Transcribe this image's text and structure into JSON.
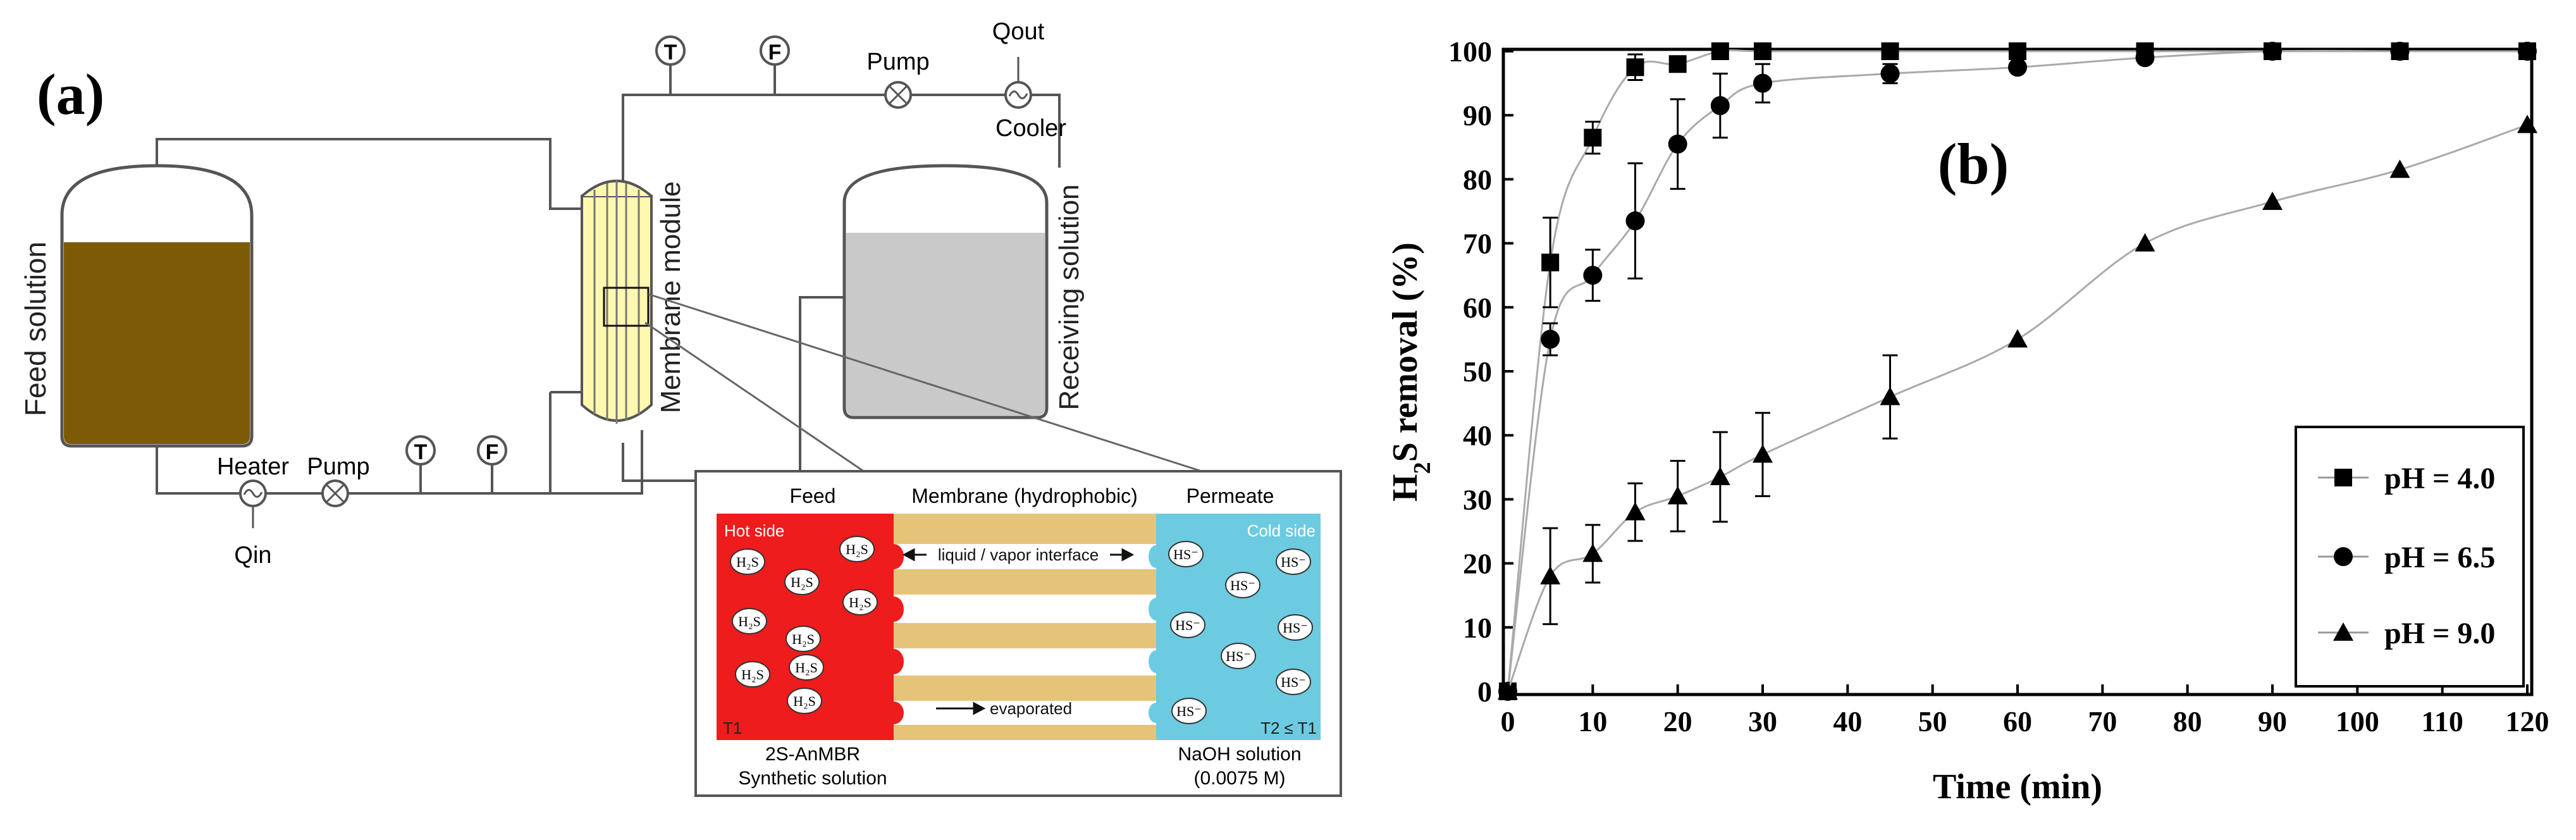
{
  "panel_a": {
    "label": "(a)",
    "feed_solution": "Feed solution",
    "membrane_module": "Membrane module",
    "receiving_solution": "Receiving solution",
    "pump_top": "Pump",
    "qout": "Qout",
    "cooler": "Cooler",
    "heater": "Heater",
    "pump_bottom": "Pump",
    "qin": "Qin",
    "t": "T",
    "f": "F",
    "inset": {
      "feed_header": "Feed",
      "membrane_header": "Membrane (hydrophobic)",
      "permeate_header": "Permeate",
      "hot_side": "Hot side",
      "cold_side": "Cold side",
      "interface": "liquid / vapor interface",
      "evaporated": "evaporated",
      "t1": "T1",
      "t2": "T2 ≤ T1",
      "feed_caption_1": "2S-AnMBR",
      "feed_caption_2": "Synthetic solution",
      "permeate_caption_1": "NaOH solution",
      "permeate_caption_2": "(0.0075 M)",
      "h2s": "H₂S",
      "hs": "HS⁻"
    }
  },
  "chart_data": {
    "type": "scatter",
    "panel_label": "(b)",
    "title": "",
    "xlabel": "Time (min)",
    "ylabel_main": "H",
    "ylabel_sub": "2",
    "ylabel_rest": "S removal (%)",
    "xlim": [
      0,
      120
    ],
    "ylim": [
      0,
      100
    ],
    "xticks": [
      0,
      10,
      20,
      30,
      40,
      50,
      60,
      70,
      80,
      90,
      100,
      110,
      120
    ],
    "yticks": [
      0,
      10,
      20,
      30,
      40,
      50,
      60,
      70,
      80,
      90,
      100
    ],
    "legend_position": "bottom-right",
    "series": [
      {
        "name": "pH = 4.0",
        "marker": "square",
        "x": [
          0,
          5,
          10,
          15,
          20,
          25,
          30,
          45,
          60,
          75,
          90,
          105,
          120
        ],
        "y": [
          0,
          67,
          86.5,
          97.5,
          98,
          100,
          100,
          100,
          100,
          100,
          100,
          100,
          100
        ],
        "err": [
          0,
          7,
          2.5,
          2,
          0,
          0,
          0,
          0,
          0,
          0,
          0,
          0,
          0
        ]
      },
      {
        "name": "pH = 6.5",
        "marker": "circle",
        "x": [
          0,
          5,
          10,
          15,
          20,
          25,
          30,
          45,
          60,
          75,
          90,
          105,
          120
        ],
        "y": [
          0,
          55,
          65,
          73.5,
          85.5,
          91.5,
          95,
          96.5,
          97.5,
          99,
          100,
          100,
          100
        ],
        "err": [
          0,
          2.5,
          4,
          9,
          7,
          5,
          3,
          1.5,
          0,
          0.5,
          0,
          0,
          0
        ]
      },
      {
        "name": "pH = 9.0",
        "marker": "triangle",
        "x": [
          0,
          5,
          10,
          15,
          20,
          25,
          30,
          45,
          60,
          75,
          90,
          105,
          120
        ],
        "y": [
          0,
          18,
          21.5,
          28,
          30.5,
          33.5,
          37,
          46,
          55,
          70,
          76.5,
          81.5,
          88.5
        ],
        "err": [
          0,
          7.5,
          4.5,
          4.5,
          5.5,
          7,
          6.5,
          6.5,
          0,
          0,
          0,
          0,
          0
        ]
      }
    ]
  }
}
